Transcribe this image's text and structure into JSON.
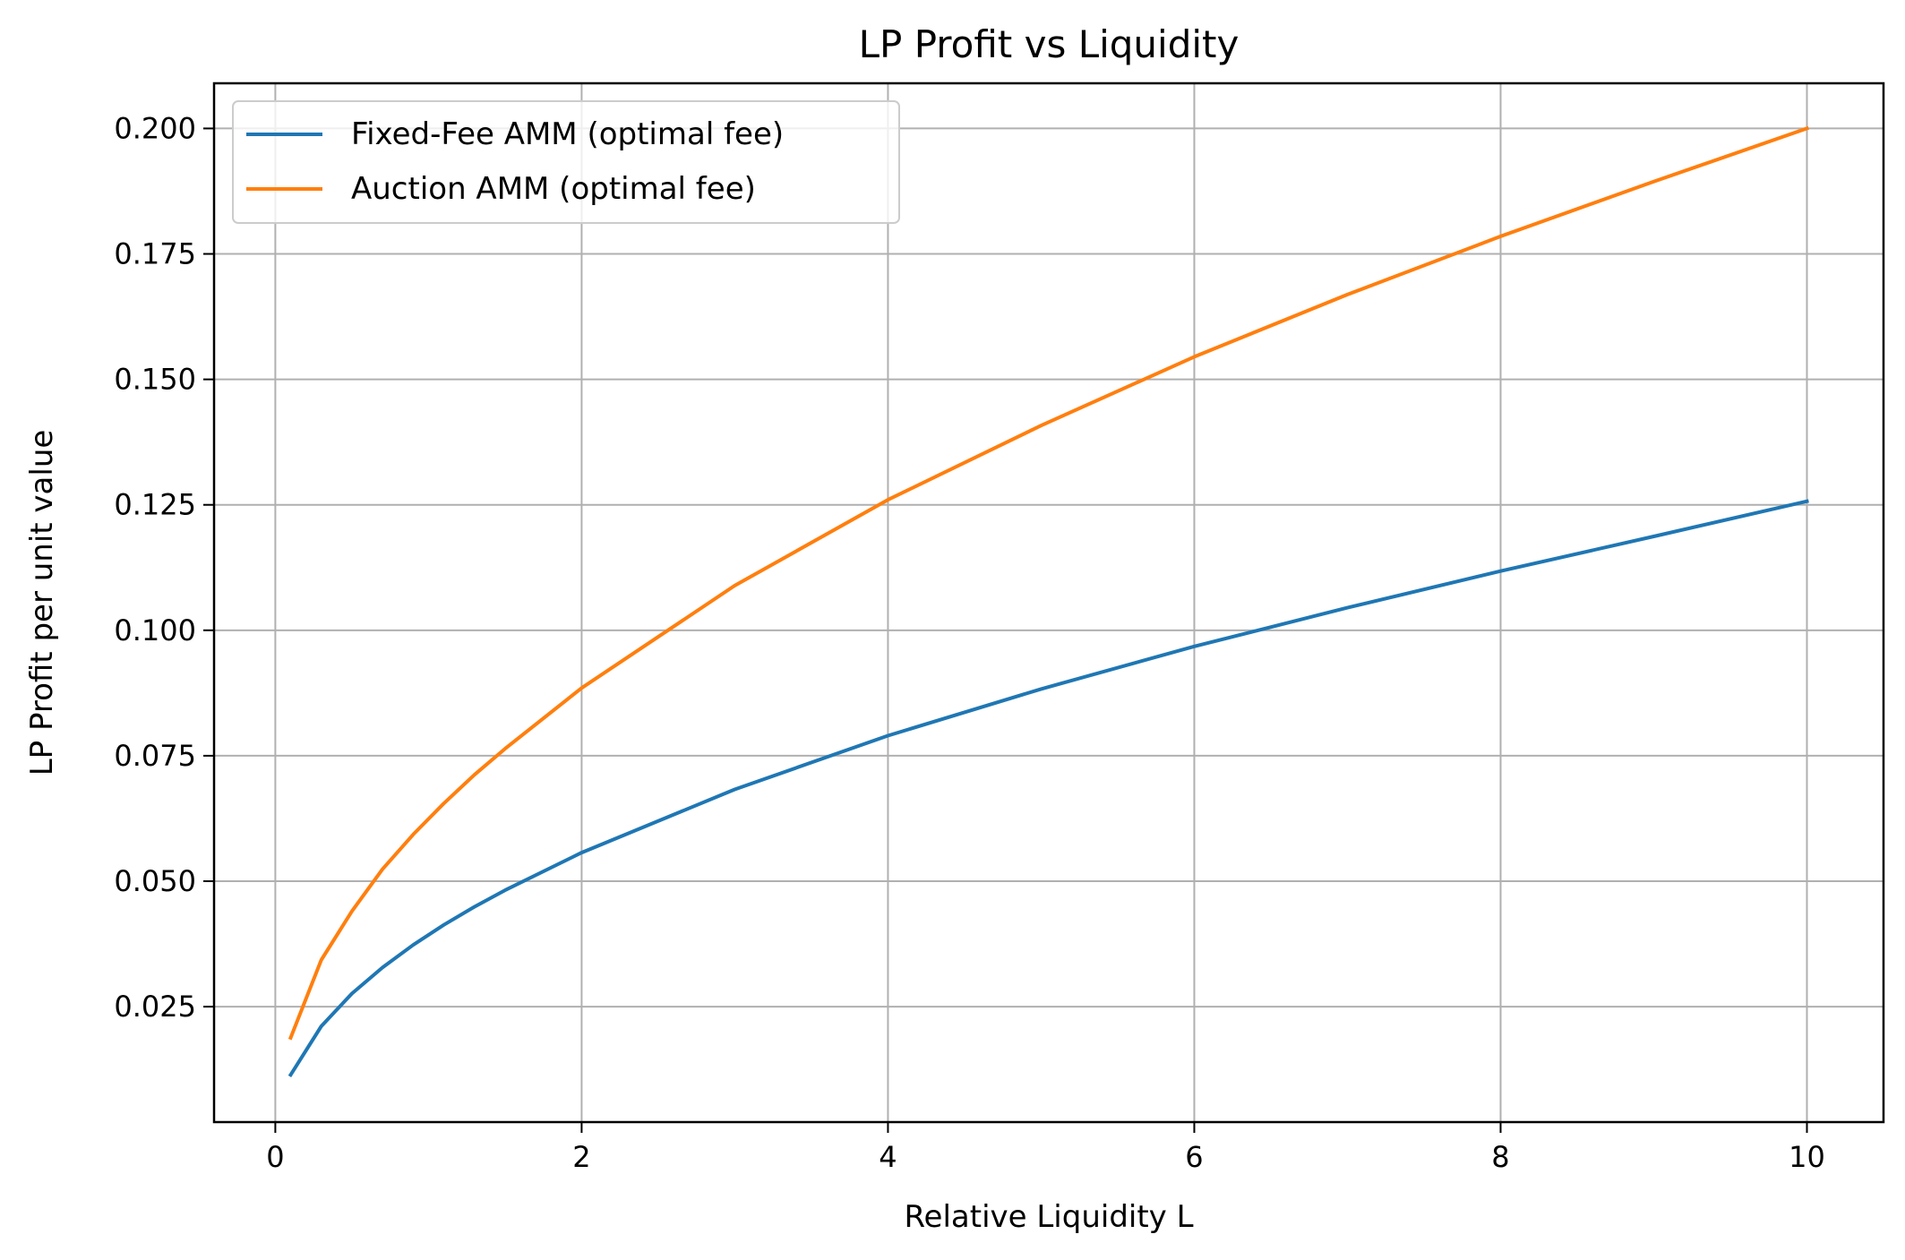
{
  "chart_data": {
    "type": "line",
    "title": "LP Profit vs Liquidity",
    "xlabel": "Relative Liquidity L",
    "ylabel": "LP Profit per unit value",
    "xlim": [
      -0.4,
      10.5
    ],
    "ylim": [
      0.002,
      0.209
    ],
    "xticks": [
      0,
      2,
      4,
      6,
      8,
      10
    ],
    "xtick_labels": [
      "0",
      "2",
      "4",
      "6",
      "8",
      "10"
    ],
    "yticks": [
      0.025,
      0.05,
      0.075,
      0.1,
      0.125,
      0.15,
      0.175,
      0.2
    ],
    "ytick_labels": [
      "0.025",
      "0.050",
      "0.075",
      "0.100",
      "0.125",
      "0.150",
      "0.175",
      "0.200"
    ],
    "grid": true,
    "legend_position": "top-left",
    "x": [
      0.1,
      0.3,
      0.5,
      0.7,
      0.9,
      1.1,
      1.3,
      1.5,
      2,
      3,
      4,
      5,
      6,
      7,
      8,
      9,
      10
    ],
    "series": [
      {
        "name": "Fixed-Fee AMM (optimal fee)",
        "color": "#1f77b4",
        "values": [
          0.0114,
          0.0211,
          0.0276,
          0.0328,
          0.0373,
          0.0413,
          0.0449,
          0.0482,
          0.0557,
          0.0683,
          0.079,
          0.0883,
          0.0968,
          0.1045,
          0.1118,
          0.1187,
          0.1257
        ]
      },
      {
        "name": "Auction AMM (optimal fee)",
        "color": "#ff7f0e",
        "values": [
          0.0188,
          0.0343,
          0.044,
          0.0524,
          0.0593,
          0.0655,
          0.0712,
          0.0764,
          0.0885,
          0.1089,
          0.126,
          0.1408,
          0.1545,
          0.1669,
          0.1785,
          0.1894,
          0.2
        ]
      }
    ]
  }
}
